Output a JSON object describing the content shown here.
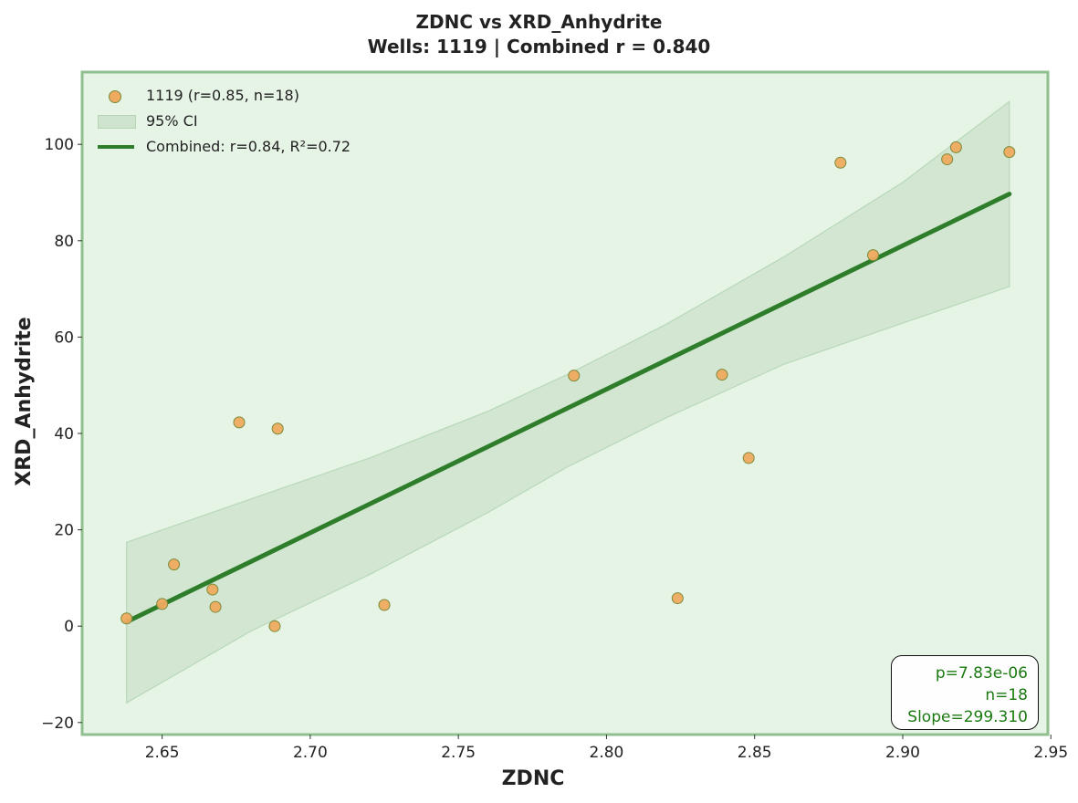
{
  "title_line1": "ZDNC vs XRD_Anhydrite",
  "title_line2": "Wells: 1119 | Combined r = 0.840",
  "colors": {
    "plot_background": "#e6f4e6",
    "spine": "#8fbf8f",
    "points": "#eeaa5e",
    "point_edge": "#7c8a3a",
    "fit_line": "#2e7d2a",
    "ci_band": "#cfe4cf",
    "stats_text": "#1a7a10"
  },
  "legend": {
    "scatter_label": "1119 (r=0.85, n=18)",
    "ci_label": "95% CI",
    "fit_label": "Combined: r=0.84, R²=0.72"
  },
  "stats": {
    "p_value": "p=7.83e-06",
    "n": "n=18",
    "slope": "Slope=299.310"
  },
  "chart_data": {
    "type": "scatter",
    "xlabel": "ZDNC",
    "ylabel": "XRD_Anhydrite",
    "xlim": [
      2.623,
      2.949
    ],
    "ylim": [
      -22.5,
      115
    ],
    "x_ticks": [
      2.65,
      2.7,
      2.75,
      2.8,
      2.85,
      2.9,
      2.95
    ],
    "x_tick_labels": [
      "2.65",
      "2.70",
      "2.75",
      "2.80",
      "2.85",
      "2.90",
      "2.95"
    ],
    "y_ticks": [
      -20,
      0,
      20,
      40,
      60,
      80,
      100
    ],
    "y_tick_labels": [
      "−20",
      "0",
      "20",
      "40",
      "60",
      "80",
      "100"
    ],
    "grid": false,
    "legend_position": "top-left",
    "series": [
      {
        "name": "1119 (r=0.85, n=18)",
        "points": [
          {
            "x": 2.638,
            "y": 1.6
          },
          {
            "x": 2.65,
            "y": 4.6
          },
          {
            "x": 2.654,
            "y": 12.8
          },
          {
            "x": 2.667,
            "y": 7.6
          },
          {
            "x": 2.668,
            "y": 4.0
          },
          {
            "x": 2.676,
            "y": 42.3
          },
          {
            "x": 2.688,
            "y": 0.0
          },
          {
            "x": 2.689,
            "y": 41.0
          },
          {
            "x": 2.725,
            "y": 4.4
          },
          {
            "x": 2.789,
            "y": 52.0
          },
          {
            "x": 2.824,
            "y": 5.8
          },
          {
            "x": 2.839,
            "y": 52.2
          },
          {
            "x": 2.848,
            "y": 34.9
          },
          {
            "x": 2.879,
            "y": 96.2
          },
          {
            "x": 2.89,
            "y": 77.0
          },
          {
            "x": 2.915,
            "y": 96.9
          },
          {
            "x": 2.918,
            "y": 99.4
          },
          {
            "x": 2.936,
            "y": 98.4
          }
        ]
      }
    ],
    "fit_line": {
      "x": [
        2.638,
        2.936
      ],
      "y": [
        0.9,
        89.7
      ]
    },
    "ci_band": {
      "x": [
        2.638,
        2.68,
        2.72,
        2.76,
        2.787,
        2.82,
        2.86,
        2.9,
        2.936
      ],
      "upper": [
        17.4,
        26.4,
        34.9,
        44.6,
        52.3,
        62.6,
        76.7,
        92.1,
        108.9
      ],
      "lower": [
        -15.9,
        -1.0,
        10.7,
        23.6,
        33.1,
        43.2,
        54.4,
        62.9,
        70.5
      ]
    }
  }
}
